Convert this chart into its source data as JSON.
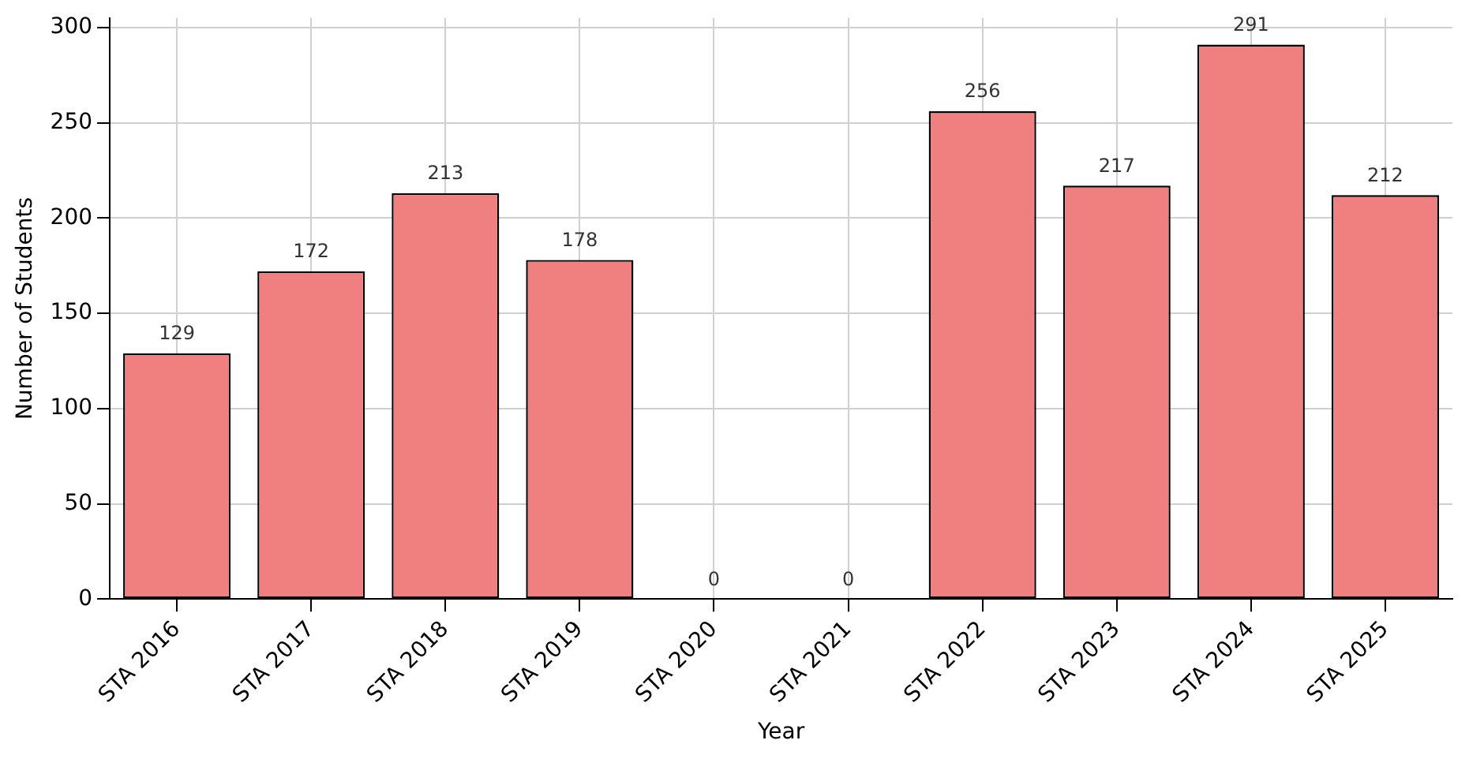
{
  "chart_data": {
    "type": "bar",
    "xlabel": "Year",
    "ylabel": "Number of Students",
    "categories": [
      "STA 2016",
      "STA 2017",
      "STA 2018",
      "STA 2019",
      "STA 2020",
      "STA 2021",
      "STA 2022",
      "STA 2023",
      "STA 2024",
      "STA 2025"
    ],
    "values": [
      129,
      172,
      213,
      178,
      0,
      0,
      256,
      217,
      291,
      212
    ],
    "color": "#f08080",
    "ylim": [
      0,
      305
    ],
    "yticks": [
      0,
      50,
      100,
      150,
      200,
      250,
      300
    ],
    "grid": true,
    "data_labels": true
  }
}
